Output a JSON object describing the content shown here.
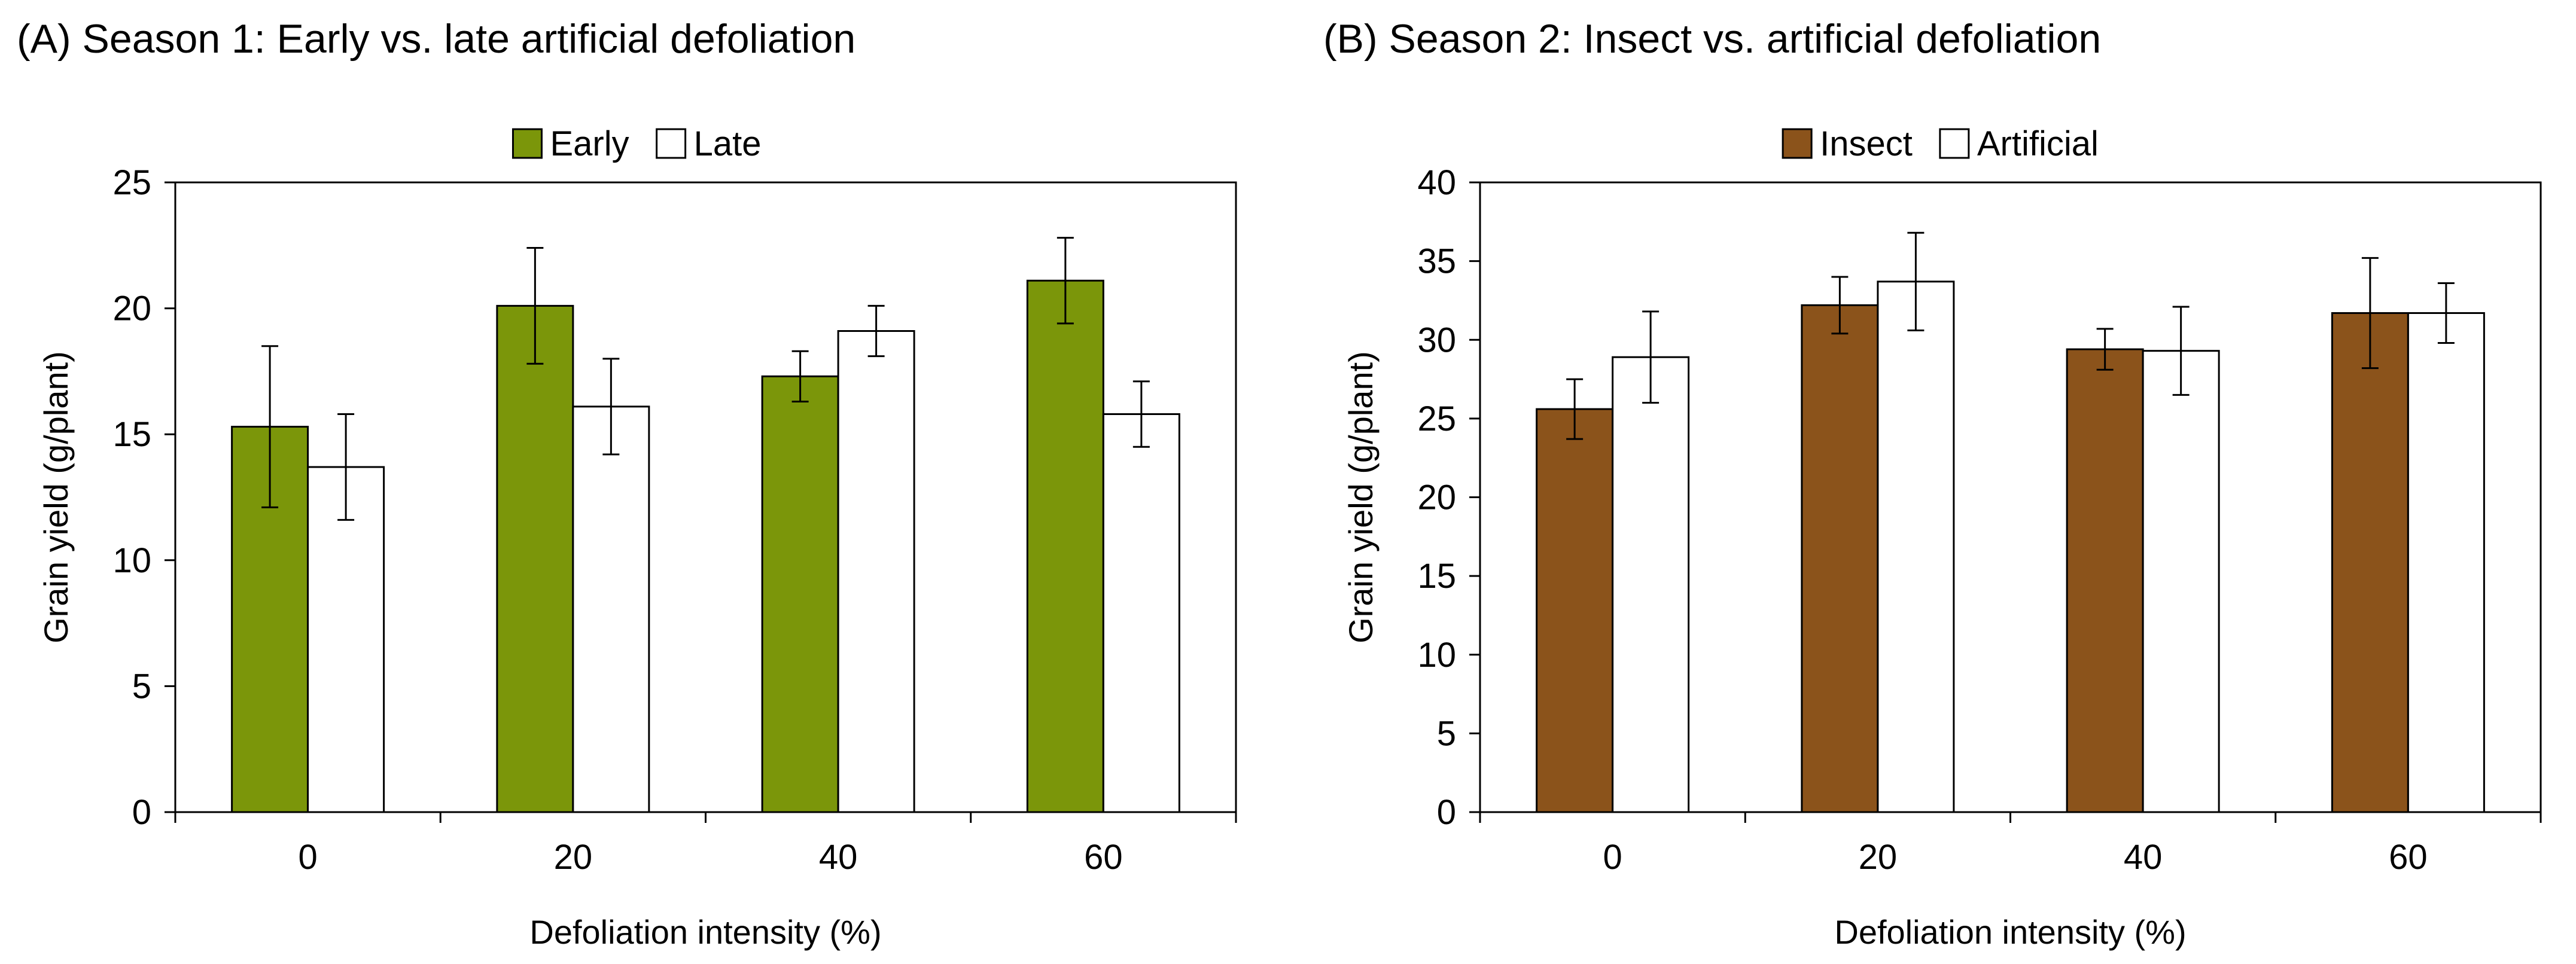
{
  "panels": {
    "a": {
      "title": "(A) Season 1: Early vs. late artificial defoliation"
    },
    "b": {
      "title": "(B) Season 2: Insect vs. artificial defoliation"
    }
  },
  "chart_data": [
    {
      "type": "bar",
      "title": "(A) Season 1: Early vs. late artificial defoliation",
      "xlabel": "Defoliation intensity (%)",
      "ylabel": "Grain yield (g/plant)",
      "categories": [
        "0",
        "20",
        "40",
        "60"
      ],
      "ylim": [
        0,
        25
      ],
      "yticks": [
        0,
        5,
        10,
        15,
        20,
        25
      ],
      "legend_position": "top-center",
      "grid": false,
      "series": [
        {
          "name": "Early",
          "color": "#7b960a",
          "values": [
            15.3,
            20.1,
            17.3,
            21.1
          ],
          "errors": [
            3.2,
            2.3,
            1.0,
            1.7
          ]
        },
        {
          "name": "Late",
          "color": "#ffffff",
          "values": [
            13.7,
            16.1,
            19.1,
            15.8
          ],
          "errors": [
            2.1,
            1.9,
            1.0,
            1.3
          ]
        }
      ]
    },
    {
      "type": "bar",
      "title": "(B) Season 2: Insect vs. artificial defoliation",
      "xlabel": "Defoliation intensity (%)",
      "ylabel": "Grain yield (g/plant)",
      "categories": [
        "0",
        "20",
        "40",
        "60"
      ],
      "ylim": [
        0,
        40
      ],
      "yticks": [
        0,
        5,
        10,
        15,
        20,
        25,
        30,
        35,
        40
      ],
      "legend_position": "top-center",
      "grid": false,
      "series": [
        {
          "name": "Insect",
          "color": "#8b531b",
          "values": [
            25.6,
            32.2,
            29.4,
            31.7
          ],
          "errors": [
            1.9,
            1.8,
            1.3,
            3.5
          ]
        },
        {
          "name": "Artificial",
          "color": "#ffffff",
          "values": [
            28.9,
            33.7,
            29.3,
            31.7
          ],
          "errors": [
            2.9,
            3.1,
            2.8,
            1.9
          ]
        }
      ]
    }
  ]
}
